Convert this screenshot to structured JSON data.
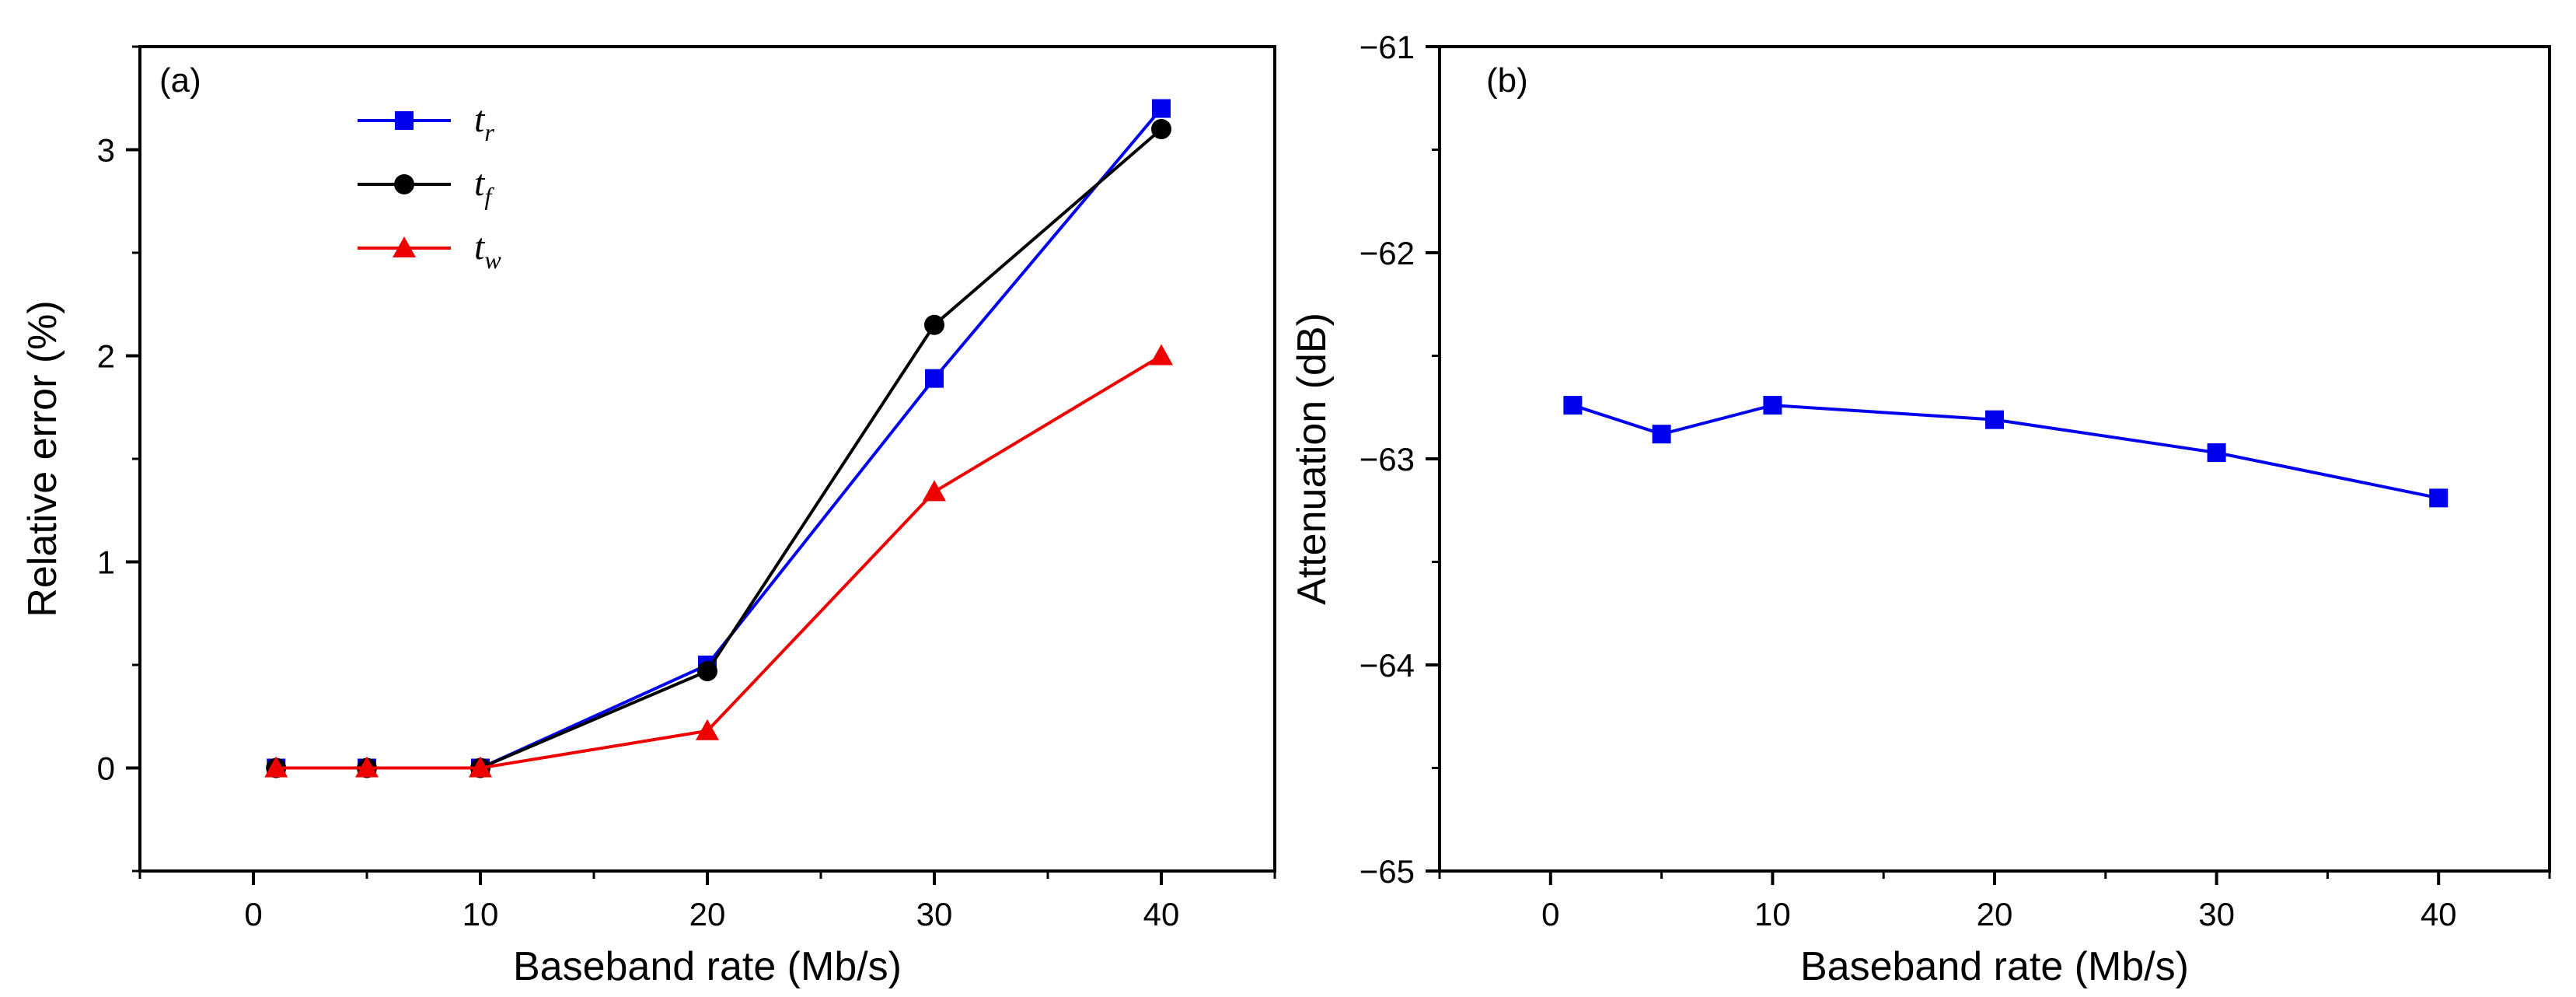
{
  "chart_data": [
    {
      "type": "line",
      "panel_label": "(a)",
      "xlabel": "Baseband rate (Mb/s)",
      "ylabel": "Relative error (%)",
      "xlim": [
        -5,
        45
      ],
      "ylim": [
        -0.5,
        3.5
      ],
      "xticks": [
        0,
        10,
        20,
        30,
        40
      ],
      "yticks": [
        0,
        1,
        2,
        3
      ],
      "xtick_labels": [
        "0",
        "10",
        "20",
        "30",
        "40"
      ],
      "ytick_labels": [
        "0",
        "1",
        "2",
        "3"
      ],
      "x": [
        1,
        5,
        10,
        20,
        30,
        40
      ],
      "legend_position": "top-left",
      "series": [
        {
          "name": "t",
          "subscript": "r",
          "color": "#0000ee",
          "marker": "square",
          "values": [
            0,
            0,
            0,
            0.5,
            1.89,
            3.2
          ]
        },
        {
          "name": "t",
          "subscript": "f",
          "color": "#000000",
          "marker": "circle",
          "values": [
            0,
            0,
            0,
            0.47,
            2.15,
            3.1
          ]
        },
        {
          "name": "t",
          "subscript": "w",
          "color": "#ee0000",
          "marker": "triangle",
          "values": [
            0,
            0,
            0,
            0.18,
            1.34,
            2.0
          ]
        }
      ]
    },
    {
      "type": "line",
      "panel_label": "(b)",
      "xlabel": "Baseband rate (Mb/s)",
      "ylabel": "Attenuation (dB)",
      "xlim": [
        -5,
        45
      ],
      "ylim": [
        -65,
        -61
      ],
      "xticks": [
        0,
        10,
        20,
        30,
        40
      ],
      "yticks": [
        -65,
        -64,
        -63,
        -62,
        -61
      ],
      "xtick_labels": [
        "0",
        "10",
        "20",
        "30",
        "40"
      ],
      "ytick_labels": [
        "−65",
        "−64",
        "−63",
        "−62",
        "−61"
      ],
      "x": [
        1,
        5,
        10,
        20,
        30,
        40
      ],
      "series": [
        {
          "name": "Attenuation",
          "color": "#0000ee",
          "marker": "square",
          "values": [
            -62.74,
            -62.88,
            -62.74,
            -62.81,
            -62.97,
            -63.19
          ]
        }
      ]
    }
  ]
}
